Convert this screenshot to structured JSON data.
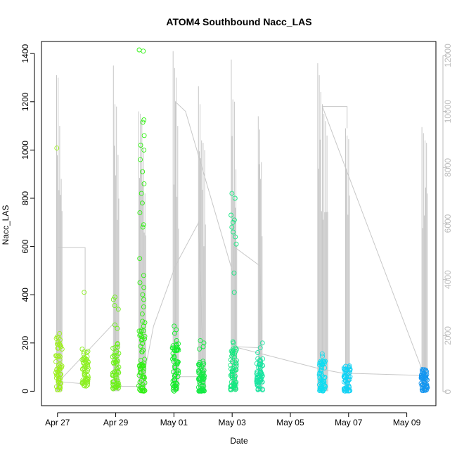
{
  "chart_data": {
    "type": "scatter",
    "title": "ATOM4 Southbound Nacc_LAS",
    "xlabel": "Date",
    "ylabel": "Nacc_LAS",
    "x_ticks": [
      {
        "label": "Apr 27",
        "day": 0
      },
      {
        "label": "Apr 29",
        "day": 2
      },
      {
        "label": "May 01",
        "day": 4
      },
      {
        "label": "May 03",
        "day": 6
      },
      {
        "label": "May 05",
        "day": 8
      },
      {
        "label": "May 07",
        "day": 10
      },
      {
        "label": "May 09",
        "day": 12
      }
    ],
    "xlim": [
      -0.55,
      13.0
    ],
    "ylim": [
      -60,
      1450
    ],
    "y_ticks": [
      0,
      200,
      400,
      600,
      800,
      1000,
      1200,
      1400
    ],
    "y2lim": [
      -500,
      12500
    ],
    "y2_ticks": [
      0,
      2000,
      4000,
      6000,
      8000,
      10000,
      12000
    ],
    "colors": {
      "axis": "#000000",
      "secondary_axis": "#bdbdbd",
      "trace": "#c8c8c8"
    },
    "clusters": [
      {
        "day": 0.05,
        "ymin": 5,
        "ymax": 240,
        "outliers": [
          1008
        ],
        "color": "#9cf01a"
      },
      {
        "day": 0.95,
        "ymin": 20,
        "ymax": 180,
        "outliers": [
          410
        ],
        "color": "#8cf020"
      },
      {
        "day": 2.0,
        "ymin": 10,
        "ymax": 200,
        "outliers": [
          260,
          275,
          340,
          355,
          380,
          390
        ],
        "color": "#6cf018"
      },
      {
        "day": 2.9,
        "ymin": 0,
        "ymax": 300,
        "outliers": [
          320,
          350,
          380,
          400,
          430,
          450,
          480,
          550,
          680,
          690,
          740,
          780,
          820,
          860,
          910,
          960,
          1000,
          1020,
          1060,
          1115,
          1125,
          1410,
          1415
        ],
        "color": "#2ef010"
      },
      {
        "day": 4.05,
        "ymin": 0,
        "ymax": 200,
        "outliers": [
          210,
          240,
          255,
          270
        ],
        "color": "#14ec2a"
      },
      {
        "day": 4.95,
        "ymin": 0,
        "ymax": 130,
        "outliers": [
          175,
          185,
          200,
          210
        ],
        "color": "#12ea42"
      },
      {
        "day": 6.05,
        "ymin": 5,
        "ymax": 180,
        "outliers": [
          200,
          205,
          410,
          490,
          610,
          640,
          660,
          680,
          700,
          710,
          730,
          800,
          820
        ],
        "color": "#14e880"
      },
      {
        "day": 6.95,
        "ymin": 5,
        "ymax": 140,
        "outliers": [
          160,
          180,
          200
        ],
        "color": "#18e4a0"
      },
      {
        "day": 9.1,
        "ymin": 0,
        "ymax": 130,
        "outliers": [
          145,
          155
        ],
        "color": "#10dcf0"
      },
      {
        "day": 9.95,
        "ymin": 0,
        "ymax": 115,
        "outliers": [],
        "color": "#14d2f4"
      },
      {
        "day": 12.6,
        "ymin": 0,
        "ymax": 90,
        "outliers": [],
        "color": "#1496f0"
      }
    ],
    "spike_groups": [
      {
        "day": 0.05,
        "tops": [
          1310,
          1300,
          1100,
          880
        ]
      },
      {
        "day": 2.0,
        "tops": [
          1350,
          1190,
          1180,
          980
        ]
      },
      {
        "day": 2.9,
        "tops": [
          1160,
          1150,
          1120,
          1010,
          820
        ]
      },
      {
        "day": 4.05,
        "tops": [
          1410,
          1340,
          1300,
          1100
        ]
      },
      {
        "day": 4.95,
        "tops": [
          1265,
          1190,
          1040,
          1030,
          1000
        ]
      },
      {
        "day": 6.05,
        "tops": [
          1375,
          1210,
          1200,
          920
        ]
      },
      {
        "day": 6.95,
        "tops": [
          1140,
          1085,
          950
        ]
      },
      {
        "day": 9.1,
        "tops": [
          1360,
          1310,
          1240,
          1190,
          1150,
          1120,
          1060
        ]
      },
      {
        "day": 9.95,
        "tops": [
          1090,
          1060,
          1045
        ]
      },
      {
        "day": 12.6,
        "tops": [
          1095,
          1070,
          1040,
          1030
        ]
      }
    ],
    "trace_path": [
      [
        0.0,
        595
      ],
      [
        0.95,
        595
      ],
      [
        0.95,
        30
      ],
      [
        0.05,
        40
      ],
      [
        2.0,
        290
      ],
      [
        2.0,
        20
      ],
      [
        2.9,
        20
      ],
      [
        3.3,
        270
      ],
      [
        4.05,
        520
      ],
      [
        4.85,
        700
      ],
      [
        5.0,
        60
      ],
      [
        4.05,
        60
      ],
      [
        4.05,
        1200
      ],
      [
        4.4,
        1160
      ],
      [
        6.05,
        480
      ],
      [
        6.05,
        600
      ],
      [
        6.95,
        520
      ],
      [
        7.0,
        180
      ],
      [
        6.05,
        185
      ],
      [
        9.1,
        90
      ],
      [
        9.8,
        75
      ],
      [
        12.6,
        65
      ],
      [
        9.1,
        1180
      ],
      [
        9.95,
        1180
      ],
      [
        9.95,
        1090
      ]
    ]
  }
}
